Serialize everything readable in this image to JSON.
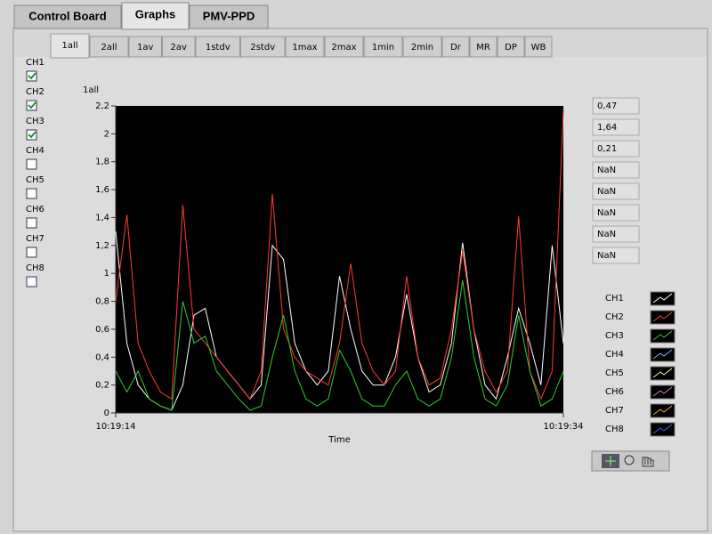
{
  "tabs": [
    "Control Board",
    "Graphs",
    "PMV-PPD"
  ],
  "active_tab": 1,
  "subtabs": [
    "1all",
    "2all",
    "1av",
    "2av",
    "1stdv",
    "2stdv",
    "1max",
    "2max",
    "1min",
    "2min",
    "Dr",
    "MR",
    "DP",
    "WB"
  ],
  "active_subtab": 0,
  "channels": [
    {
      "label": "CH1",
      "checked": true
    },
    {
      "label": "CH2",
      "checked": true
    },
    {
      "label": "CH3",
      "checked": true
    },
    {
      "label": "CH4",
      "checked": false
    },
    {
      "label": "CH5",
      "checked": false
    },
    {
      "label": "CH6",
      "checked": false
    },
    {
      "label": "CH7",
      "checked": false
    },
    {
      "label": "CH8",
      "checked": false
    }
  ],
  "readouts": [
    "0,47",
    "1,64",
    "0,21",
    "NaN",
    "NaN",
    "NaN",
    "NaN",
    "NaN"
  ],
  "chart_data": {
    "type": "line",
    "y_label": "1all",
    "x_label": "Time",
    "background": "#000000",
    "x": [
      0,
      0.5,
      1,
      1.5,
      2,
      2.5,
      3,
      3.5,
      4,
      4.5,
      5,
      5.5,
      6,
      6.5,
      7,
      7.5,
      8,
      8.5,
      9,
      9.5,
      10,
      10.5,
      11,
      11.5,
      12,
      12.5,
      13,
      13.5,
      14,
      14.5,
      15,
      15.5,
      16,
      16.5,
      17,
      17.5,
      18,
      18.5,
      19,
      19.5,
      20
    ],
    "xlim": [
      0,
      20
    ],
    "xticks": [
      {
        "value": 0,
        "label": "10:19:14"
      },
      {
        "value": 20,
        "label": "10:19:34"
      }
    ],
    "ylim": [
      0,
      2.2
    ],
    "yticks": [
      0,
      {
        "value": 0.2,
        "label": "0,2"
      },
      {
        "value": 0.4,
        "label": "0,4"
      },
      {
        "value": 0.6,
        "label": "0,6"
      },
      {
        "value": 0.8,
        "label": "0,8"
      },
      1,
      {
        "value": 1.2,
        "label": "1,2"
      },
      {
        "value": 1.4,
        "label": "1,4"
      },
      {
        "value": 1.6,
        "label": "1,6"
      },
      {
        "value": 1.8,
        "label": "1,8"
      },
      2,
      {
        "value": 2.2,
        "label": "2,2"
      }
    ],
    "series": [
      {
        "name": "CH1",
        "color": "#ffffff",
        "values": [
          1.3,
          0.5,
          0.2,
          0.1,
          0.05,
          0.02,
          0.2,
          0.7,
          0.75,
          0.4,
          0.3,
          0.2,
          0.1,
          0.2,
          1.2,
          1.1,
          0.5,
          0.3,
          0.2,
          0.3,
          0.98,
          0.6,
          0.3,
          0.2,
          0.2,
          0.4,
          0.85,
          0.4,
          0.15,
          0.2,
          0.5,
          1.22,
          0.6,
          0.2,
          0.1,
          0.4,
          0.75,
          0.5,
          0.2,
          1.2,
          0.5
        ]
      },
      {
        "name": "CH2",
        "color": "#ff3b30",
        "values": [
          0.8,
          1.42,
          0.5,
          0.3,
          0.15,
          0.1,
          1.49,
          0.6,
          0.5,
          0.4,
          0.3,
          0.2,
          0.1,
          0.3,
          1.57,
          0.6,
          0.4,
          0.3,
          0.25,
          0.2,
          0.5,
          1.07,
          0.5,
          0.3,
          0.2,
          0.3,
          0.98,
          0.4,
          0.2,
          0.25,
          0.6,
          1.16,
          0.6,
          0.3,
          0.15,
          0.3,
          1.41,
          0.3,
          0.1,
          0.3,
          2.17
        ]
      },
      {
        "name": "CH3",
        "color": "#33cc33",
        "values": [
          0.3,
          0.15,
          0.3,
          0.1,
          0.05,
          0.02,
          0.8,
          0.5,
          0.55,
          0.3,
          0.2,
          0.1,
          0.02,
          0.05,
          0.4,
          0.7,
          0.3,
          0.1,
          0.05,
          0.1,
          0.45,
          0.3,
          0.1,
          0.05,
          0.05,
          0.2,
          0.3,
          0.1,
          0.05,
          0.1,
          0.4,
          0.95,
          0.4,
          0.1,
          0.05,
          0.2,
          0.7,
          0.3,
          0.05,
          0.1,
          0.3
        ]
      },
      {
        "name": "CH4",
        "color": "#80b0ff",
        "values": [
          null,
          null,
          null,
          null,
          null,
          null,
          null,
          null,
          null,
          null,
          null,
          null,
          null,
          null,
          null,
          null,
          null,
          null,
          null,
          null,
          null,
          null,
          null,
          null,
          null,
          null,
          null,
          null,
          null,
          null,
          null,
          null,
          null,
          null,
          null,
          null,
          null,
          null,
          null,
          null,
          null
        ]
      },
      {
        "name": "CH5",
        "color": "#ffffa0",
        "values": [
          null,
          null,
          null,
          null,
          null,
          null,
          null,
          null,
          null,
          null,
          null,
          null,
          null,
          null,
          null,
          null,
          null,
          null,
          null,
          null,
          null,
          null,
          null,
          null,
          null,
          null,
          null,
          null,
          null,
          null,
          null,
          null,
          null,
          null,
          null,
          null,
          null,
          null,
          null,
          null,
          null
        ]
      },
      {
        "name": "CH6",
        "color": "#c080c0",
        "values": [
          null,
          null,
          null,
          null,
          null,
          null,
          null,
          null,
          null,
          null,
          null,
          null,
          null,
          null,
          null,
          null,
          null,
          null,
          null,
          null,
          null,
          null,
          null,
          null,
          null,
          null,
          null,
          null,
          null,
          null,
          null,
          null,
          null,
          null,
          null,
          null,
          null,
          null,
          null,
          null,
          null
        ]
      },
      {
        "name": "CH7",
        "color": "#ffa040",
        "values": [
          null,
          null,
          null,
          null,
          null,
          null,
          null,
          null,
          null,
          null,
          null,
          null,
          null,
          null,
          null,
          null,
          null,
          null,
          null,
          null,
          null,
          null,
          null,
          null,
          null,
          null,
          null,
          null,
          null,
          null,
          null,
          null,
          null,
          null,
          null,
          null,
          null,
          null,
          null,
          null,
          null
        ]
      },
      {
        "name": "CH8",
        "color": "#4060ff",
        "values": [
          null,
          null,
          null,
          null,
          null,
          null,
          null,
          null,
          null,
          null,
          null,
          null,
          null,
          null,
          null,
          null,
          null,
          null,
          null,
          null,
          null,
          null,
          null,
          null,
          null,
          null,
          null,
          null,
          null,
          null,
          null,
          null,
          null,
          null,
          null,
          null,
          null,
          null,
          null,
          null,
          null
        ]
      }
    ]
  }
}
